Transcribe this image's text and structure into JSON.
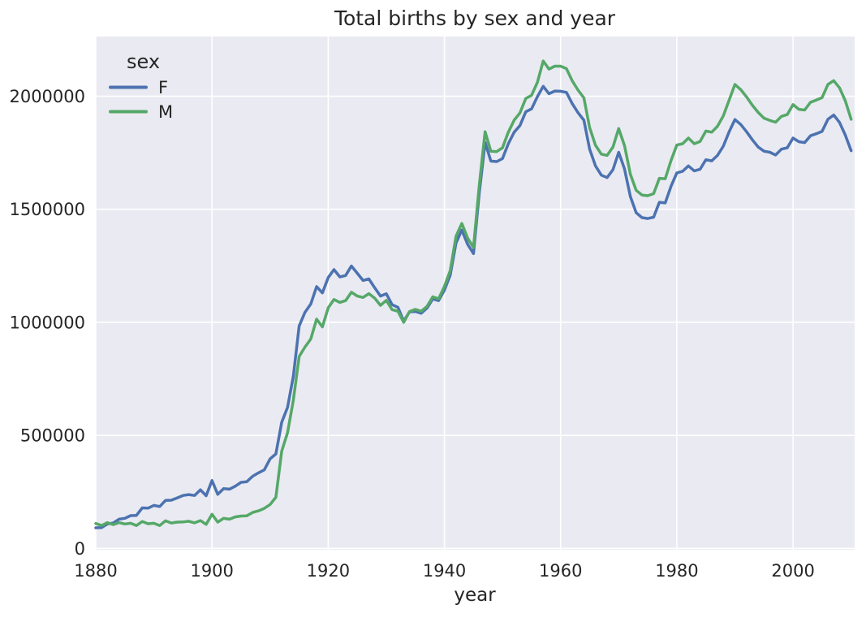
{
  "figure": {
    "title": "Total births by sex and year",
    "xlabel": "year"
  },
  "chart_data": {
    "type": "line",
    "title": "Total births by sex and year",
    "xlabel": "year",
    "ylabel": "",
    "legend": {
      "title": "sex",
      "position": "upper-left",
      "frame": false
    },
    "grid": true,
    "xticks": [
      1880,
      1900,
      1920,
      1940,
      1960,
      1980,
      2000
    ],
    "yticks": [
      0,
      500000,
      1000000,
      1500000,
      2000000
    ],
    "xlim": [
      1880,
      2010.6
    ],
    "ylim": [
      -6000,
      2264000
    ],
    "style": {
      "plot_background": "#eaeaf2",
      "gridline_color": "#ffffff",
      "text_color": "#262626",
      "figure_background": "#ffffff"
    },
    "x": [
      1880,
      1881,
      1882,
      1883,
      1884,
      1885,
      1886,
      1887,
      1888,
      1889,
      1890,
      1891,
      1892,
      1893,
      1894,
      1895,
      1896,
      1897,
      1898,
      1899,
      1900,
      1901,
      1902,
      1903,
      1904,
      1905,
      1906,
      1907,
      1908,
      1909,
      1910,
      1911,
      1912,
      1913,
      1914,
      1915,
      1916,
      1917,
      1918,
      1919,
      1920,
      1921,
      1922,
      1923,
      1924,
      1925,
      1926,
      1927,
      1928,
      1929,
      1930,
      1931,
      1932,
      1933,
      1934,
      1935,
      1936,
      1937,
      1938,
      1939,
      1940,
      1941,
      1942,
      1943,
      1944,
      1945,
      1946,
      1947,
      1948,
      1949,
      1950,
      1951,
      1952,
      1953,
      1954,
      1955,
      1956,
      1957,
      1958,
      1959,
      1960,
      1961,
      1962,
      1963,
      1964,
      1965,
      1966,
      1967,
      1968,
      1969,
      1970,
      1971,
      1972,
      1973,
      1974,
      1975,
      1976,
      1977,
      1978,
      1979,
      1980,
      1981,
      1982,
      1983,
      1984,
      1985,
      1986,
      1987,
      1988,
      1989,
      1990,
      1991,
      1992,
      1993,
      1994,
      1995,
      1996,
      1997,
      1998,
      1999,
      2000,
      2001,
      2002,
      2003,
      2004,
      2005,
      2006,
      2007,
      2008,
      2009,
      2010
    ],
    "series": [
      {
        "name": "F",
        "color": "#4c72b0",
        "values": [
          91000,
          92000,
          108000,
          112000,
          129000,
          133000,
          145000,
          146000,
          179000,
          178000,
          190000,
          185000,
          212000,
          213000,
          223000,
          234000,
          238000,
          234000,
          259000,
          233000,
          300000,
          239000,
          264000,
          262000,
          275000,
          292000,
          295000,
          319000,
          334000,
          347000,
          396000,
          418000,
          558000,
          624000,
          761000,
          984000,
          1044000,
          1081000,
          1158000,
          1130000,
          1198000,
          1233000,
          1201000,
          1207000,
          1249000,
          1217000,
          1185000,
          1192000,
          1153000,
          1116000,
          1126000,
          1078000,
          1066000,
          1005000,
          1046000,
          1048000,
          1040000,
          1063000,
          1103000,
          1096000,
          1143000,
          1208000,
          1351000,
          1408000,
          1345000,
          1304000,
          1571000,
          1796000,
          1713000,
          1711000,
          1724000,
          1790000,
          1841000,
          1870000,
          1931000,
          1944000,
          1998000,
          2044000,
          2011000,
          2023000,
          2022000,
          2017000,
          1967000,
          1927000,
          1894000,
          1766000,
          1692000,
          1651000,
          1640000,
          1675000,
          1752000,
          1678000,
          1556000,
          1485000,
          1463000,
          1459000,
          1465000,
          1531000,
          1528000,
          1602000,
          1661000,
          1668000,
          1692000,
          1670000,
          1677000,
          1719000,
          1714000,
          1738000,
          1779000,
          1843000,
          1897000,
          1875000,
          1843000,
          1807000,
          1775000,
          1757000,
          1752000,
          1740000,
          1766000,
          1772000,
          1815000,
          1799000,
          1795000,
          1825000,
          1834000,
          1845000,
          1898000,
          1917000,
          1884000,
          1828000,
          1759000
        ]
      },
      {
        "name": "M",
        "color": "#55a868",
        "values": [
          110000,
          101000,
          114000,
          105000,
          114000,
          108000,
          111000,
          101000,
          119000,
          109000,
          111000,
          101000,
          122000,
          112000,
          116000,
          117000,
          120000,
          113000,
          123000,
          106000,
          151000,
          116000,
          133000,
          129000,
          139000,
          143000,
          144000,
          159000,
          166000,
          177000,
          194000,
          226000,
          430000,
          512000,
          655000,
          849000,
          890000,
          926000,
          1014000,
          980000,
          1064000,
          1101000,
          1088000,
          1096000,
          1133000,
          1116000,
          1110000,
          1127000,
          1107000,
          1075000,
          1097000,
          1056000,
          1049000,
          1000000,
          1048000,
          1057000,
          1049000,
          1070000,
          1113000,
          1104000,
          1159000,
          1228000,
          1381000,
          1437000,
          1372000,
          1331000,
          1606000,
          1843000,
          1757000,
          1755000,
          1772000,
          1841000,
          1894000,
          1926000,
          1990000,
          2004000,
          2061000,
          2156000,
          2120000,
          2133000,
          2133000,
          2122000,
          2068000,
          2027000,
          1993000,
          1861000,
          1783000,
          1744000,
          1738000,
          1775000,
          1857000,
          1781000,
          1655000,
          1584000,
          1563000,
          1560000,
          1569000,
          1637000,
          1635000,
          1716000,
          1784000,
          1790000,
          1815000,
          1790000,
          1800000,
          1846000,
          1841000,
          1867000,
          1913000,
          1983000,
          2052000,
          2029000,
          1997000,
          1960000,
          1928000,
          1903000,
          1893000,
          1885000,
          1911000,
          1919000,
          1963000,
          1942000,
          1939000,
          1973000,
          1983000,
          1994000,
          2052000,
          2069000,
          2037000,
          1980000,
          1898000
        ]
      }
    ]
  }
}
